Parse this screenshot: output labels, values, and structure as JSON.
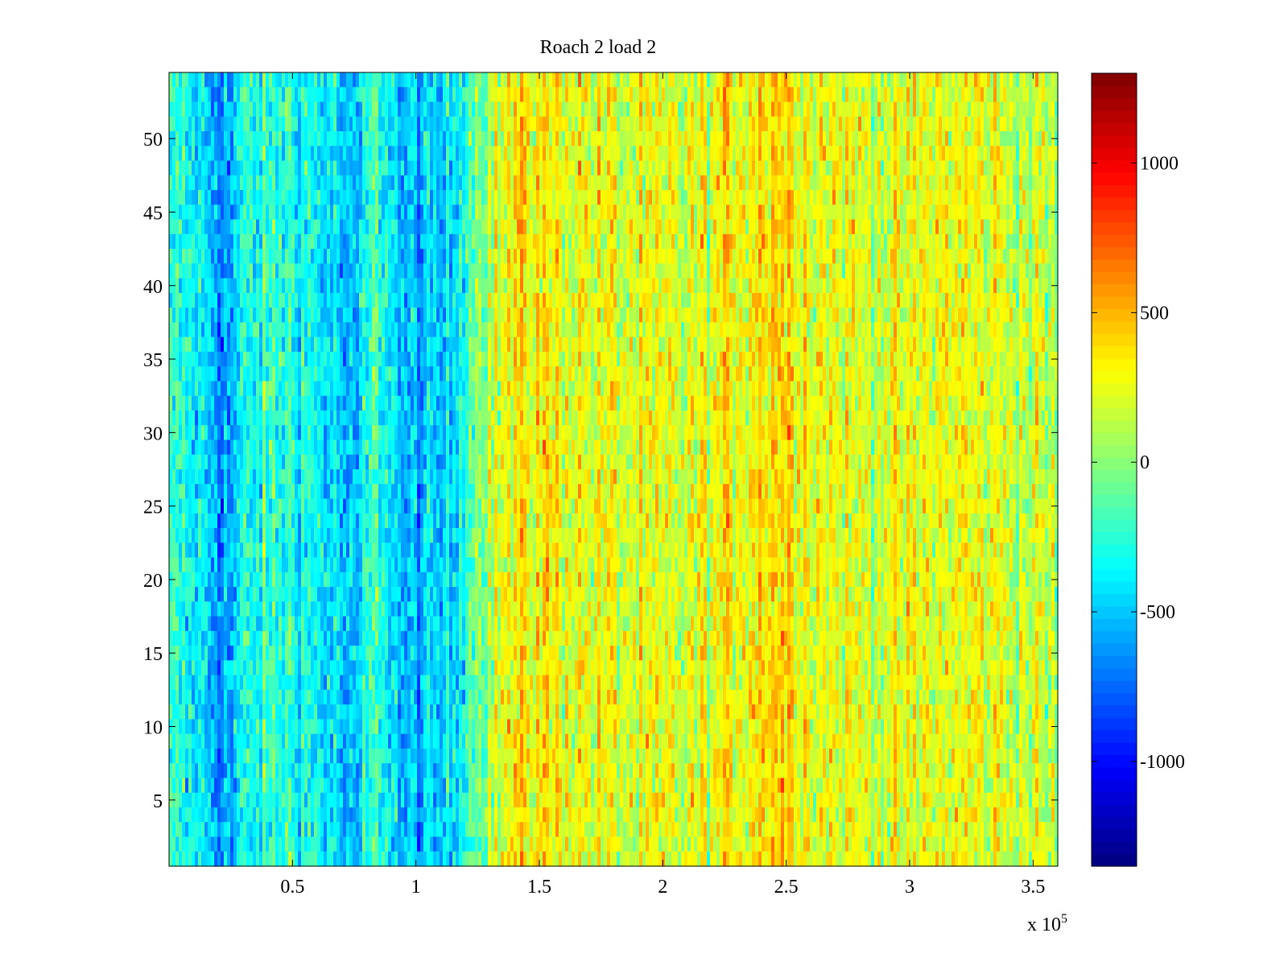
{
  "chart_data": {
    "type": "heatmap",
    "title": "Roach 2 load 2",
    "xlabel": "",
    "ylabel": "",
    "x_multiplier_label": "x 10",
    "x_multiplier_exponent": "5",
    "xlim": [
      0.0,
      3.6
    ],
    "ylim": [
      0.5,
      54.5
    ],
    "rows": 54,
    "clim": [
      -1350,
      1300
    ],
    "colormap": "jet",
    "x_ticks": [
      0.5,
      1,
      1.5,
      2,
      2.5,
      3,
      3.5
    ],
    "x_tick_labels": [
      "0.5",
      "1",
      "1.5",
      "2",
      "2.5",
      "3",
      "3.5"
    ],
    "y_ticks": [
      5,
      10,
      15,
      20,
      25,
      30,
      35,
      40,
      45,
      50
    ],
    "y_tick_labels": [
      "5",
      "10",
      "15",
      "20",
      "25",
      "30",
      "35",
      "40",
      "45",
      "50"
    ],
    "colorbar_ticks": [
      1000,
      500,
      0,
      -500,
      -1000
    ],
    "colorbar_tick_labels": [
      "1000",
      "500",
      "0",
      "-500",
      "-1000"
    ],
    "column_profile": {
      "x": [
        0.0,
        0.1,
        0.2,
        0.25,
        0.3,
        0.4,
        0.5,
        0.6,
        0.7,
        0.75,
        0.8,
        0.85,
        0.9,
        0.95,
        1.0,
        1.05,
        1.1,
        1.15,
        1.2,
        1.3,
        1.4,
        1.5,
        1.6,
        1.7,
        1.8,
        1.9,
        2.0,
        2.1,
        2.2,
        2.3,
        2.4,
        2.45,
        2.5,
        2.55,
        2.6,
        2.7,
        2.8,
        2.9,
        3.0,
        3.1,
        3.2,
        3.3,
        3.4,
        3.5,
        3.6
      ],
      "mean": [
        -300,
        -350,
        -550,
        -600,
        -350,
        -250,
        -250,
        -350,
        -500,
        -650,
        -300,
        -200,
        -350,
        -600,
        -550,
        -550,
        -500,
        -450,
        -150,
        150,
        300,
        350,
        300,
        250,
        220,
        200,
        180,
        200,
        250,
        320,
        400,
        450,
        420,
        380,
        300,
        250,
        220,
        220,
        200,
        250,
        280,
        250,
        220,
        150,
        100
      ]
    },
    "noise_amplitude": 320
  }
}
